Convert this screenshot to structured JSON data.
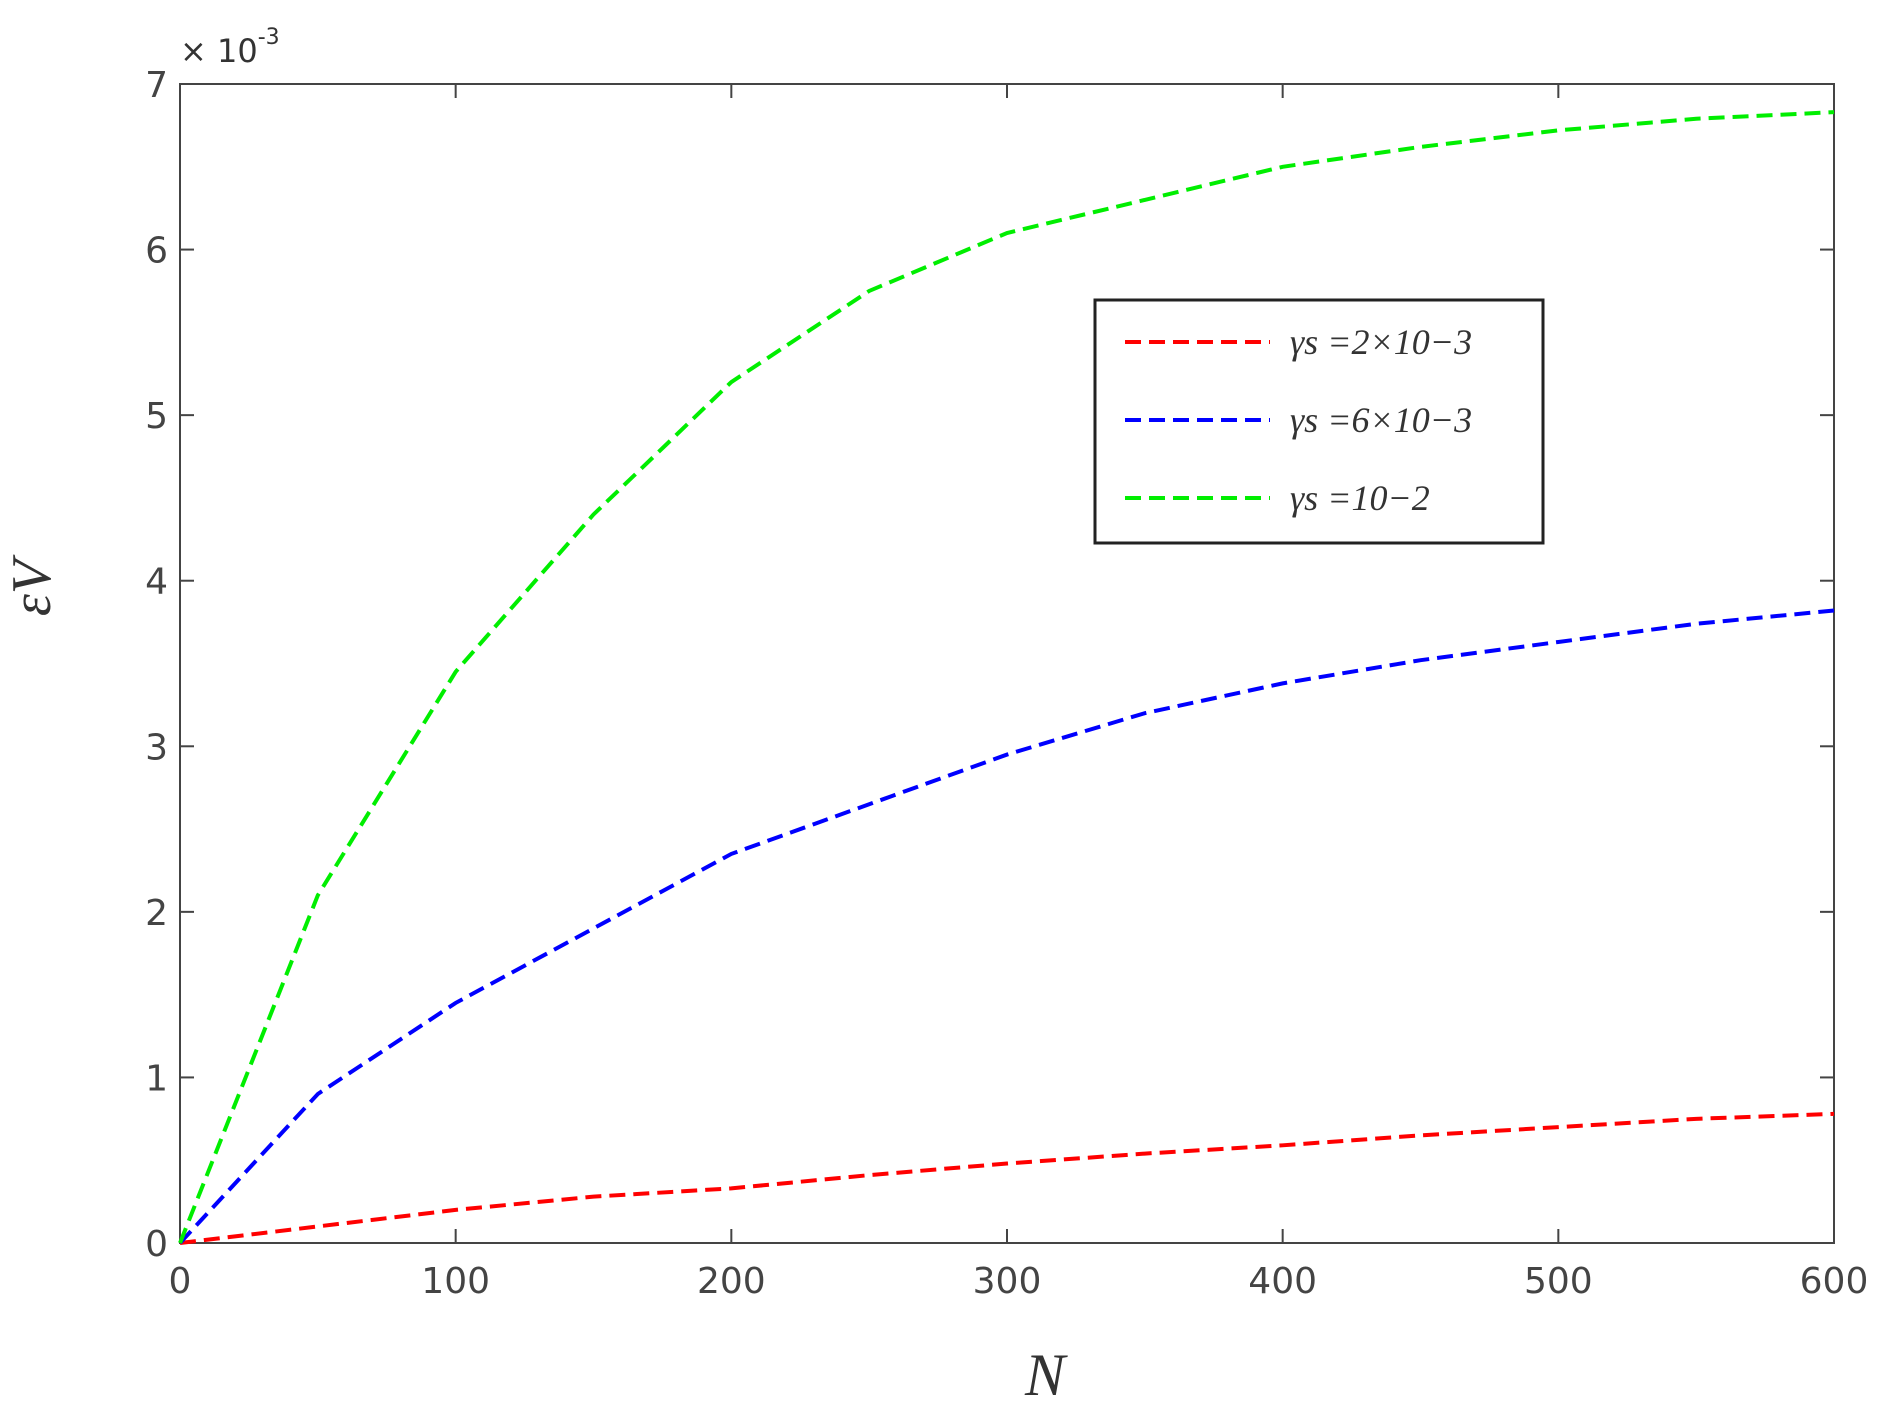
{
  "chart_data": {
    "type": "line",
    "y_label": "εV",
    "x_label": "N",
    "y_multiplier": {
      "base": "× 10",
      "exponent": "-3"
    },
    "x": [
      0,
      50,
      100,
      150,
      200,
      250,
      300,
      350,
      400,
      450,
      500,
      550,
      600
    ],
    "series": [
      {
        "name": "γs =2×10−3",
        "color": "#ff0000",
        "values": [
          0,
          0.1,
          0.2,
          0.28,
          0.33,
          0.41,
          0.48,
          0.54,
          0.59,
          0.65,
          0.7,
          0.75,
          0.78
        ]
      },
      {
        "name": "γs =6×10−3",
        "color": "#0000ff",
        "values": [
          0,
          0.9,
          1.45,
          1.9,
          2.35,
          2.65,
          2.95,
          3.2,
          3.38,
          3.52,
          3.63,
          3.74,
          3.82
        ]
      },
      {
        "name": "γs =10−2",
        "color": "#00ee00",
        "values": [
          0,
          2.1,
          3.45,
          4.4,
          5.2,
          5.75,
          6.1,
          6.3,
          6.5,
          6.62,
          6.72,
          6.79,
          6.83
        ]
      }
    ],
    "xlim": [
      0,
      600
    ],
    "xticks": [
      0,
      100,
      200,
      300,
      400,
      500,
      600
    ],
    "ylim": [
      0,
      7
    ],
    "yticks": [
      0,
      1,
      2,
      3,
      4,
      5,
      6,
      7
    ],
    "dashed": true,
    "legend": "upper right"
  }
}
